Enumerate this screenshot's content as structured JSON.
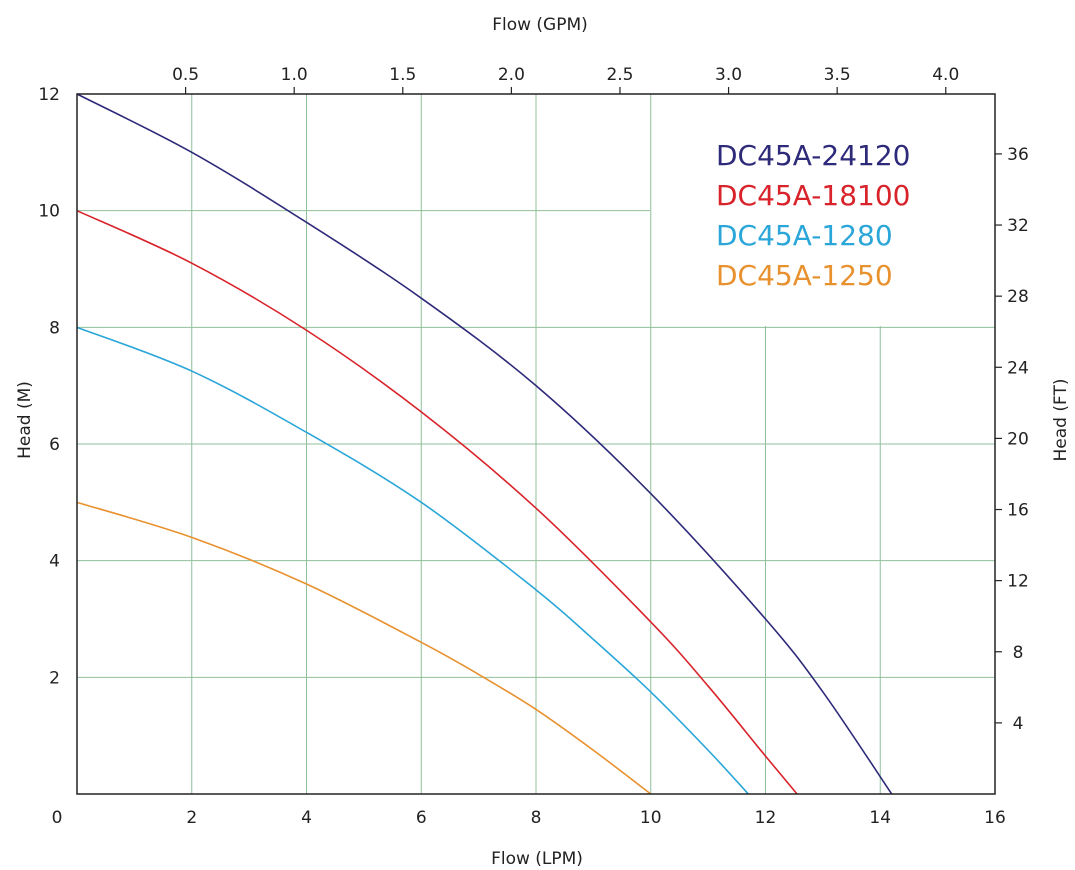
{
  "chart_data": {
    "type": "line",
    "title": "",
    "xlabel": "Flow (LPM)",
    "ylabel": "Head (M)",
    "x2label": "Flow (GPM)",
    "y2label": "Head (FT)",
    "xlim": [
      0,
      16
    ],
    "ylim": [
      0,
      12
    ],
    "x_ticks": [
      0,
      2,
      4,
      6,
      8,
      10,
      12,
      14,
      16
    ],
    "x_tick_labels": [
      "0",
      "2",
      "4",
      "6",
      "8",
      "10",
      "12",
      "14",
      "16"
    ],
    "y_ticks": [
      2,
      4,
      6,
      8,
      10,
      12
    ],
    "y_tick_labels": [
      "2",
      "4",
      "6",
      "8",
      "10",
      "12"
    ],
    "x2_ticks": [
      0.5,
      1.0,
      1.5,
      2.0,
      2.5,
      3.0,
      3.5,
      4.0
    ],
    "x2_tick_labels": [
      "0.5",
      "1.0",
      "1.5",
      "2.0",
      "2.5",
      "3.0",
      "3.5",
      "4.0"
    ],
    "y2_ticks": [
      4,
      8,
      12,
      16,
      20,
      24,
      28,
      32,
      36
    ],
    "y2_tick_labels": [
      "4",
      "8",
      "12",
      "16",
      "20",
      "24",
      "28",
      "32",
      "36"
    ],
    "grid": true,
    "legend_position": "top-right",
    "series": [
      {
        "name": "DC45A-24120",
        "color": "#2e2a7a",
        "x": [
          0,
          2,
          4,
          6,
          8,
          10,
          12,
          13,
          14.2
        ],
        "y": [
          12,
          11.0,
          9.8,
          8.5,
          7.0,
          5.15,
          3.0,
          1.75,
          0
        ]
      },
      {
        "name": "DC45A-18100",
        "color": "#d8232a",
        "x": [
          0,
          2,
          4,
          6,
          8,
          10,
          11,
          12,
          12.55
        ],
        "y": [
          10,
          9.1,
          7.95,
          6.55,
          4.9,
          2.95,
          1.85,
          0.65,
          0
        ]
      },
      {
        "name": "DC45A-1280",
        "color": "#2aa6d8",
        "x": [
          0,
          2,
          4,
          6,
          8,
          9,
          10,
          11,
          11.7
        ],
        "y": [
          8,
          7.25,
          6.2,
          5.0,
          3.5,
          2.65,
          1.75,
          0.75,
          0
        ]
      },
      {
        "name": "DC45A-1250",
        "color": "#e8912f",
        "x": [
          0,
          2,
          4,
          6,
          7,
          8,
          9,
          10
        ],
        "y": [
          5,
          4.4,
          3.6,
          2.6,
          2.05,
          1.45,
          0.75,
          0
        ]
      }
    ]
  }
}
